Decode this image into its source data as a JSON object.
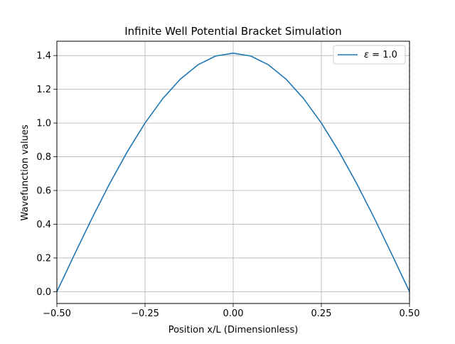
{
  "chart_data": {
    "type": "line",
    "title": "Infinite Well Potential Bracket Simulation",
    "xlabel": "Position x/L (Dimensionless)",
    "ylabel": "Wavefunction values",
    "xlim": [
      -0.5,
      0.5
    ],
    "ylim": [
      -0.07,
      1.485
    ],
    "grid": true,
    "xticks": [
      -0.5,
      -0.25,
      0.0,
      0.25,
      0.5
    ],
    "xtick_labels": [
      "−0.50",
      "−0.25",
      "0.00",
      "0.25",
      "0.50"
    ],
    "yticks": [
      0.0,
      0.2,
      0.4,
      0.6,
      0.8,
      1.0,
      1.2,
      1.4
    ],
    "ytick_labels": [
      "0.0",
      "0.2",
      "0.4",
      "0.6",
      "0.8",
      "1.0",
      "1.2",
      "1.4"
    ],
    "legend": {
      "placement": "top-right",
      "entries": [
        {
          "label_symbol": "ε",
          "label_rest": " = 1.0",
          "color": "#1f77b4"
        }
      ]
    },
    "series": [
      {
        "name": "ε = 1.0",
        "color": "#1f77b4",
        "x": [
          -0.5,
          -0.45,
          -0.4,
          -0.35,
          -0.3,
          -0.25,
          -0.2,
          -0.15,
          -0.1,
          -0.05,
          0.0,
          0.05,
          0.1,
          0.15,
          0.2,
          0.25,
          0.3,
          0.35,
          0.4,
          0.45,
          0.5
        ],
        "y": [
          0.0,
          0.221,
          0.437,
          0.642,
          0.831,
          1.0,
          1.144,
          1.26,
          1.345,
          1.397,
          1.414,
          1.397,
          1.345,
          1.26,
          1.144,
          1.0,
          0.831,
          0.642,
          0.437,
          0.221,
          0.0
        ]
      }
    ],
    "vertical_lines": [
      {
        "x": 0.5,
        "style": "dashed",
        "color": "#1f77b4"
      }
    ]
  }
}
